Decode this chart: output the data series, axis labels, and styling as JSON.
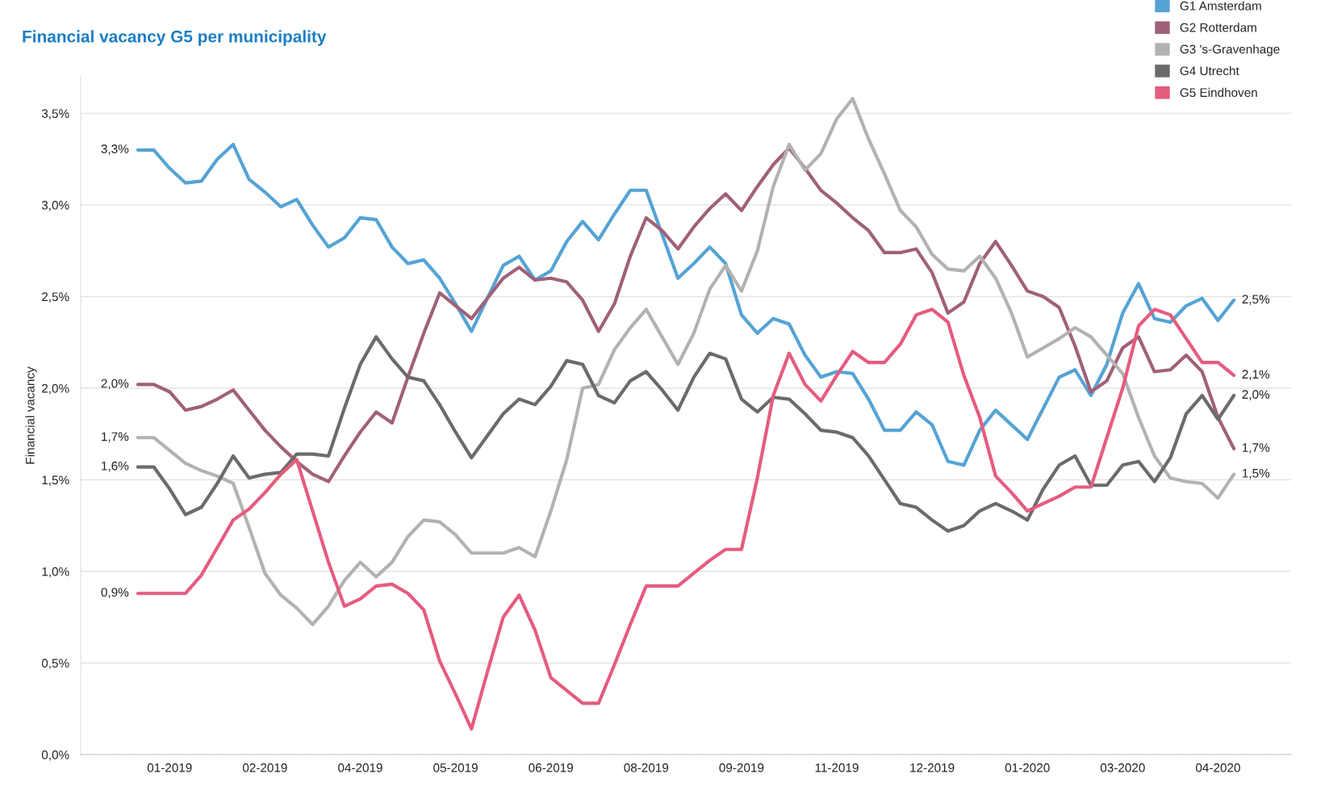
{
  "chart_data": {
    "type": "line",
    "title": "Financial vacancy G5 per municipality",
    "ylabel": "Financial vacancy",
    "categories": [
      null,
      null,
      "01-2019",
      null,
      null,
      null,
      null,
      null,
      "02-2019",
      null,
      null,
      null,
      null,
      null,
      "04-2019",
      null,
      null,
      null,
      null,
      null,
      "05-2019",
      null,
      null,
      null,
      null,
      null,
      "06-2019",
      null,
      null,
      null,
      null,
      null,
      "08-2019",
      null,
      null,
      null,
      null,
      null,
      "09-2019",
      null,
      null,
      null,
      null,
      null,
      "11-2019",
      null,
      null,
      null,
      null,
      null,
      "12-2019",
      null,
      null,
      null,
      null,
      null,
      "01-2020",
      null,
      null,
      null,
      null,
      null,
      "03-2020",
      null,
      null,
      null,
      null,
      null,
      "04-2020",
      null
    ],
    "ylim": [
      0,
      3.7
    ],
    "yticks": [
      {
        "value": 0,
        "label": "0,0%"
      },
      {
        "value": 0.5,
        "label": "0,5%"
      },
      {
        "value": 1,
        "label": "1,0%"
      },
      {
        "value": 1.5,
        "label": "1,5%"
      },
      {
        "value": 2,
        "label": "2,0%"
      },
      {
        "value": 2.5,
        "label": "2,5%"
      },
      {
        "value": 3,
        "label": "3,0%"
      },
      {
        "value": 3.5,
        "label": "3,5%"
      }
    ],
    "grid": "y",
    "legend": "top right",
    "line_style": "solid",
    "series": [
      {
        "name": "G1 Amsterdam",
        "color": "#55a3d4",
        "values": [
          3.3,
          3.3,
          3.2,
          3.12,
          3.13,
          3.25,
          3.33,
          3.14,
          3.07,
          2.99,
          3.03,
          2.89,
          2.77,
          2.82,
          2.93,
          2.92,
          2.77,
          2.68,
          2.7,
          2.6,
          2.46,
          2.31,
          2.49,
          2.67,
          2.72,
          2.59,
          2.64,
          2.8,
          2.91,
          2.81,
          2.95,
          3.08,
          3.08,
          2.84,
          2.6,
          2.68,
          2.77,
          2.68,
          2.4,
          2.3,
          2.38,
          2.35,
          2.18,
          2.06,
          2.09,
          2.08,
          1.94,
          1.77,
          1.77,
          1.87,
          1.8,
          1.6,
          1.58,
          1.77,
          1.88,
          1.8,
          1.72,
          1.89,
          2.06,
          2.1,
          1.96,
          2.13,
          2.41,
          2.57,
          2.38,
          2.36,
          2.45,
          2.49,
          2.37,
          2.48
        ],
        "value_labels": [
          "3,3%",
          null,
          null,
          null,
          null,
          null,
          null,
          null,
          null,
          null,
          null,
          null,
          null,
          null,
          null,
          null,
          null,
          null,
          null,
          null,
          null,
          null,
          null,
          null,
          null,
          null,
          null,
          null,
          null,
          null,
          null,
          null,
          null,
          null,
          null,
          null,
          null,
          null,
          null,
          null,
          null,
          null,
          null,
          null,
          null,
          null,
          null,
          null,
          null,
          null,
          null,
          null,
          null,
          null,
          null,
          null,
          null,
          null,
          null,
          null,
          null,
          null,
          null,
          null,
          null,
          null,
          null,
          null,
          null,
          "2,5%"
        ]
      },
      {
        "name": "G2 Rotterdam",
        "color": "#a0607a",
        "values": [
          2.02,
          2.02,
          1.98,
          1.88,
          1.9,
          1.94,
          1.99,
          1.88,
          1.77,
          1.68,
          1.6,
          1.53,
          1.49,
          1.63,
          1.76,
          1.87,
          1.81,
          2.06,
          2.3,
          2.52,
          2.45,
          2.38,
          2.49,
          2.6,
          2.66,
          2.59,
          2.6,
          2.58,
          2.48,
          2.31,
          2.46,
          2.72,
          2.93,
          2.86,
          2.76,
          2.88,
          2.98,
          3.06,
          2.97,
          3.1,
          3.22,
          3.31,
          3.2,
          3.08,
          3.01,
          2.93,
          2.86,
          2.74,
          2.74,
          2.76,
          2.63,
          2.41,
          2.47,
          2.68,
          2.8,
          2.67,
          2.53,
          2.5,
          2.44,
          2.23,
          1.98,
          2.04,
          2.22,
          2.28,
          2.09,
          2.1,
          2.18,
          2.09,
          1.84,
          1.67
        ],
        "value_labels": [
          "2,0%",
          null,
          null,
          null,
          null,
          null,
          null,
          null,
          null,
          null,
          null,
          null,
          null,
          null,
          null,
          null,
          null,
          null,
          null,
          null,
          null,
          null,
          null,
          null,
          null,
          null,
          null,
          null,
          null,
          null,
          null,
          null,
          null,
          null,
          null,
          null,
          null,
          null,
          null,
          null,
          null,
          null,
          null,
          null,
          null,
          null,
          null,
          null,
          null,
          null,
          null,
          null,
          null,
          null,
          null,
          null,
          null,
          null,
          null,
          null,
          null,
          null,
          null,
          null,
          null,
          null,
          null,
          null,
          null,
          "1,7%"
        ]
      },
      {
        "name": "G3 's-Gravenhage",
        "color": "#b2b2b2",
        "values": [
          1.73,
          1.73,
          1.66,
          1.59,
          1.55,
          1.52,
          1.48,
          1.24,
          0.99,
          0.87,
          0.8,
          0.71,
          0.81,
          0.95,
          1.05,
          0.97,
          1.05,
          1.19,
          1.28,
          1.27,
          1.2,
          1.1,
          1.1,
          1.1,
          1.13,
          1.08,
          1.33,
          1.61,
          2.0,
          2.02,
          2.21,
          2.33,
          2.43,
          2.28,
          2.13,
          2.3,
          2.54,
          2.67,
          2.53,
          2.75,
          3.1,
          3.33,
          3.19,
          3.28,
          3.47,
          3.58,
          3.36,
          3.17,
          2.97,
          2.88,
          2.73,
          2.65,
          2.64,
          2.72,
          2.6,
          2.41,
          2.17,
          2.22,
          2.27,
          2.33,
          2.28,
          2.18,
          2.08,
          1.84,
          1.63,
          1.51,
          1.49,
          1.48,
          1.4,
          1.53
        ],
        "value_labels": [
          "1,7%",
          null,
          null,
          null,
          null,
          null,
          null,
          null,
          null,
          null,
          null,
          null,
          null,
          null,
          null,
          null,
          null,
          null,
          null,
          null,
          null,
          null,
          null,
          null,
          null,
          null,
          null,
          null,
          null,
          null,
          null,
          null,
          null,
          null,
          null,
          null,
          null,
          null,
          null,
          null,
          null,
          null,
          null,
          null,
          null,
          null,
          null,
          null,
          null,
          null,
          null,
          null,
          null,
          null,
          null,
          null,
          null,
          null,
          null,
          null,
          null,
          null,
          null,
          null,
          null,
          null,
          null,
          null,
          null,
          "1,5%"
        ]
      },
      {
        "name": "G4 Utrecht",
        "color": "#6b6b6b",
        "values": [
          1.57,
          1.57,
          1.45,
          1.31,
          1.35,
          1.48,
          1.63,
          1.51,
          1.53,
          1.54,
          1.64,
          1.64,
          1.63,
          1.89,
          2.13,
          2.28,
          2.16,
          2.06,
          2.04,
          1.91,
          1.76,
          1.62,
          1.74,
          1.86,
          1.94,
          1.91,
          2.01,
          2.15,
          2.13,
          1.96,
          1.92,
          2.04,
          2.09,
          1.99,
          1.88,
          2.06,
          2.19,
          2.16,
          1.94,
          1.87,
          1.95,
          1.94,
          1.86,
          1.77,
          1.76,
          1.73,
          1.63,
          1.5,
          1.37,
          1.35,
          1.28,
          1.22,
          1.25,
          1.33,
          1.37,
          1.33,
          1.28,
          1.45,
          1.58,
          1.63,
          1.47,
          1.47,
          1.58,
          1.6,
          1.49,
          1.62,
          1.86,
          1.96,
          1.83,
          1.96
        ],
        "value_labels": [
          "1,6%",
          null,
          null,
          null,
          null,
          null,
          null,
          null,
          null,
          null,
          null,
          null,
          null,
          null,
          null,
          null,
          null,
          null,
          null,
          null,
          null,
          null,
          null,
          null,
          null,
          null,
          null,
          null,
          null,
          null,
          null,
          null,
          null,
          null,
          null,
          null,
          null,
          null,
          null,
          null,
          null,
          null,
          null,
          null,
          null,
          null,
          null,
          null,
          null,
          null,
          null,
          null,
          null,
          null,
          null,
          null,
          null,
          null,
          null,
          null,
          null,
          null,
          null,
          null,
          null,
          null,
          null,
          null,
          null,
          "2,0%"
        ]
      },
      {
        "name": "G5 Eindhoven",
        "color": "#e55c7e",
        "values": [
          0.88,
          0.88,
          0.88,
          0.88,
          0.98,
          1.13,
          1.28,
          1.34,
          1.43,
          1.53,
          1.61,
          1.33,
          1.05,
          0.81,
          0.85,
          0.92,
          0.93,
          0.88,
          0.79,
          0.51,
          0.33,
          0.14,
          0.45,
          0.75,
          0.87,
          0.68,
          0.42,
          0.35,
          0.28,
          0.28,
          0.49,
          0.71,
          0.92,
          0.92,
          0.92,
          0.99,
          1.06,
          1.12,
          1.12,
          1.51,
          1.96,
          2.19,
          2.02,
          1.93,
          2.07,
          2.2,
          2.14,
          2.14,
          2.24,
          2.4,
          2.43,
          2.36,
          2.07,
          1.84,
          1.52,
          1.43,
          1.33,
          1.37,
          1.41,
          1.46,
          1.46,
          1.73,
          2.0,
          2.34,
          2.43,
          2.4,
          2.27,
          2.14,
          2.14,
          2.07
        ],
        "value_labels": [
          "0,9%",
          null,
          null,
          null,
          null,
          null,
          null,
          null,
          null,
          null,
          null,
          null,
          null,
          null,
          null,
          null,
          null,
          null,
          null,
          null,
          null,
          null,
          null,
          null,
          null,
          null,
          null,
          null,
          null,
          null,
          null,
          null,
          null,
          null,
          null,
          null,
          null,
          null,
          null,
          null,
          null,
          null,
          null,
          null,
          null,
          null,
          null,
          null,
          null,
          null,
          null,
          null,
          null,
          null,
          null,
          null,
          null,
          null,
          null,
          null,
          null,
          null,
          null,
          null,
          null,
          null,
          null,
          null,
          null,
          "2,1%"
        ]
      }
    ]
  }
}
